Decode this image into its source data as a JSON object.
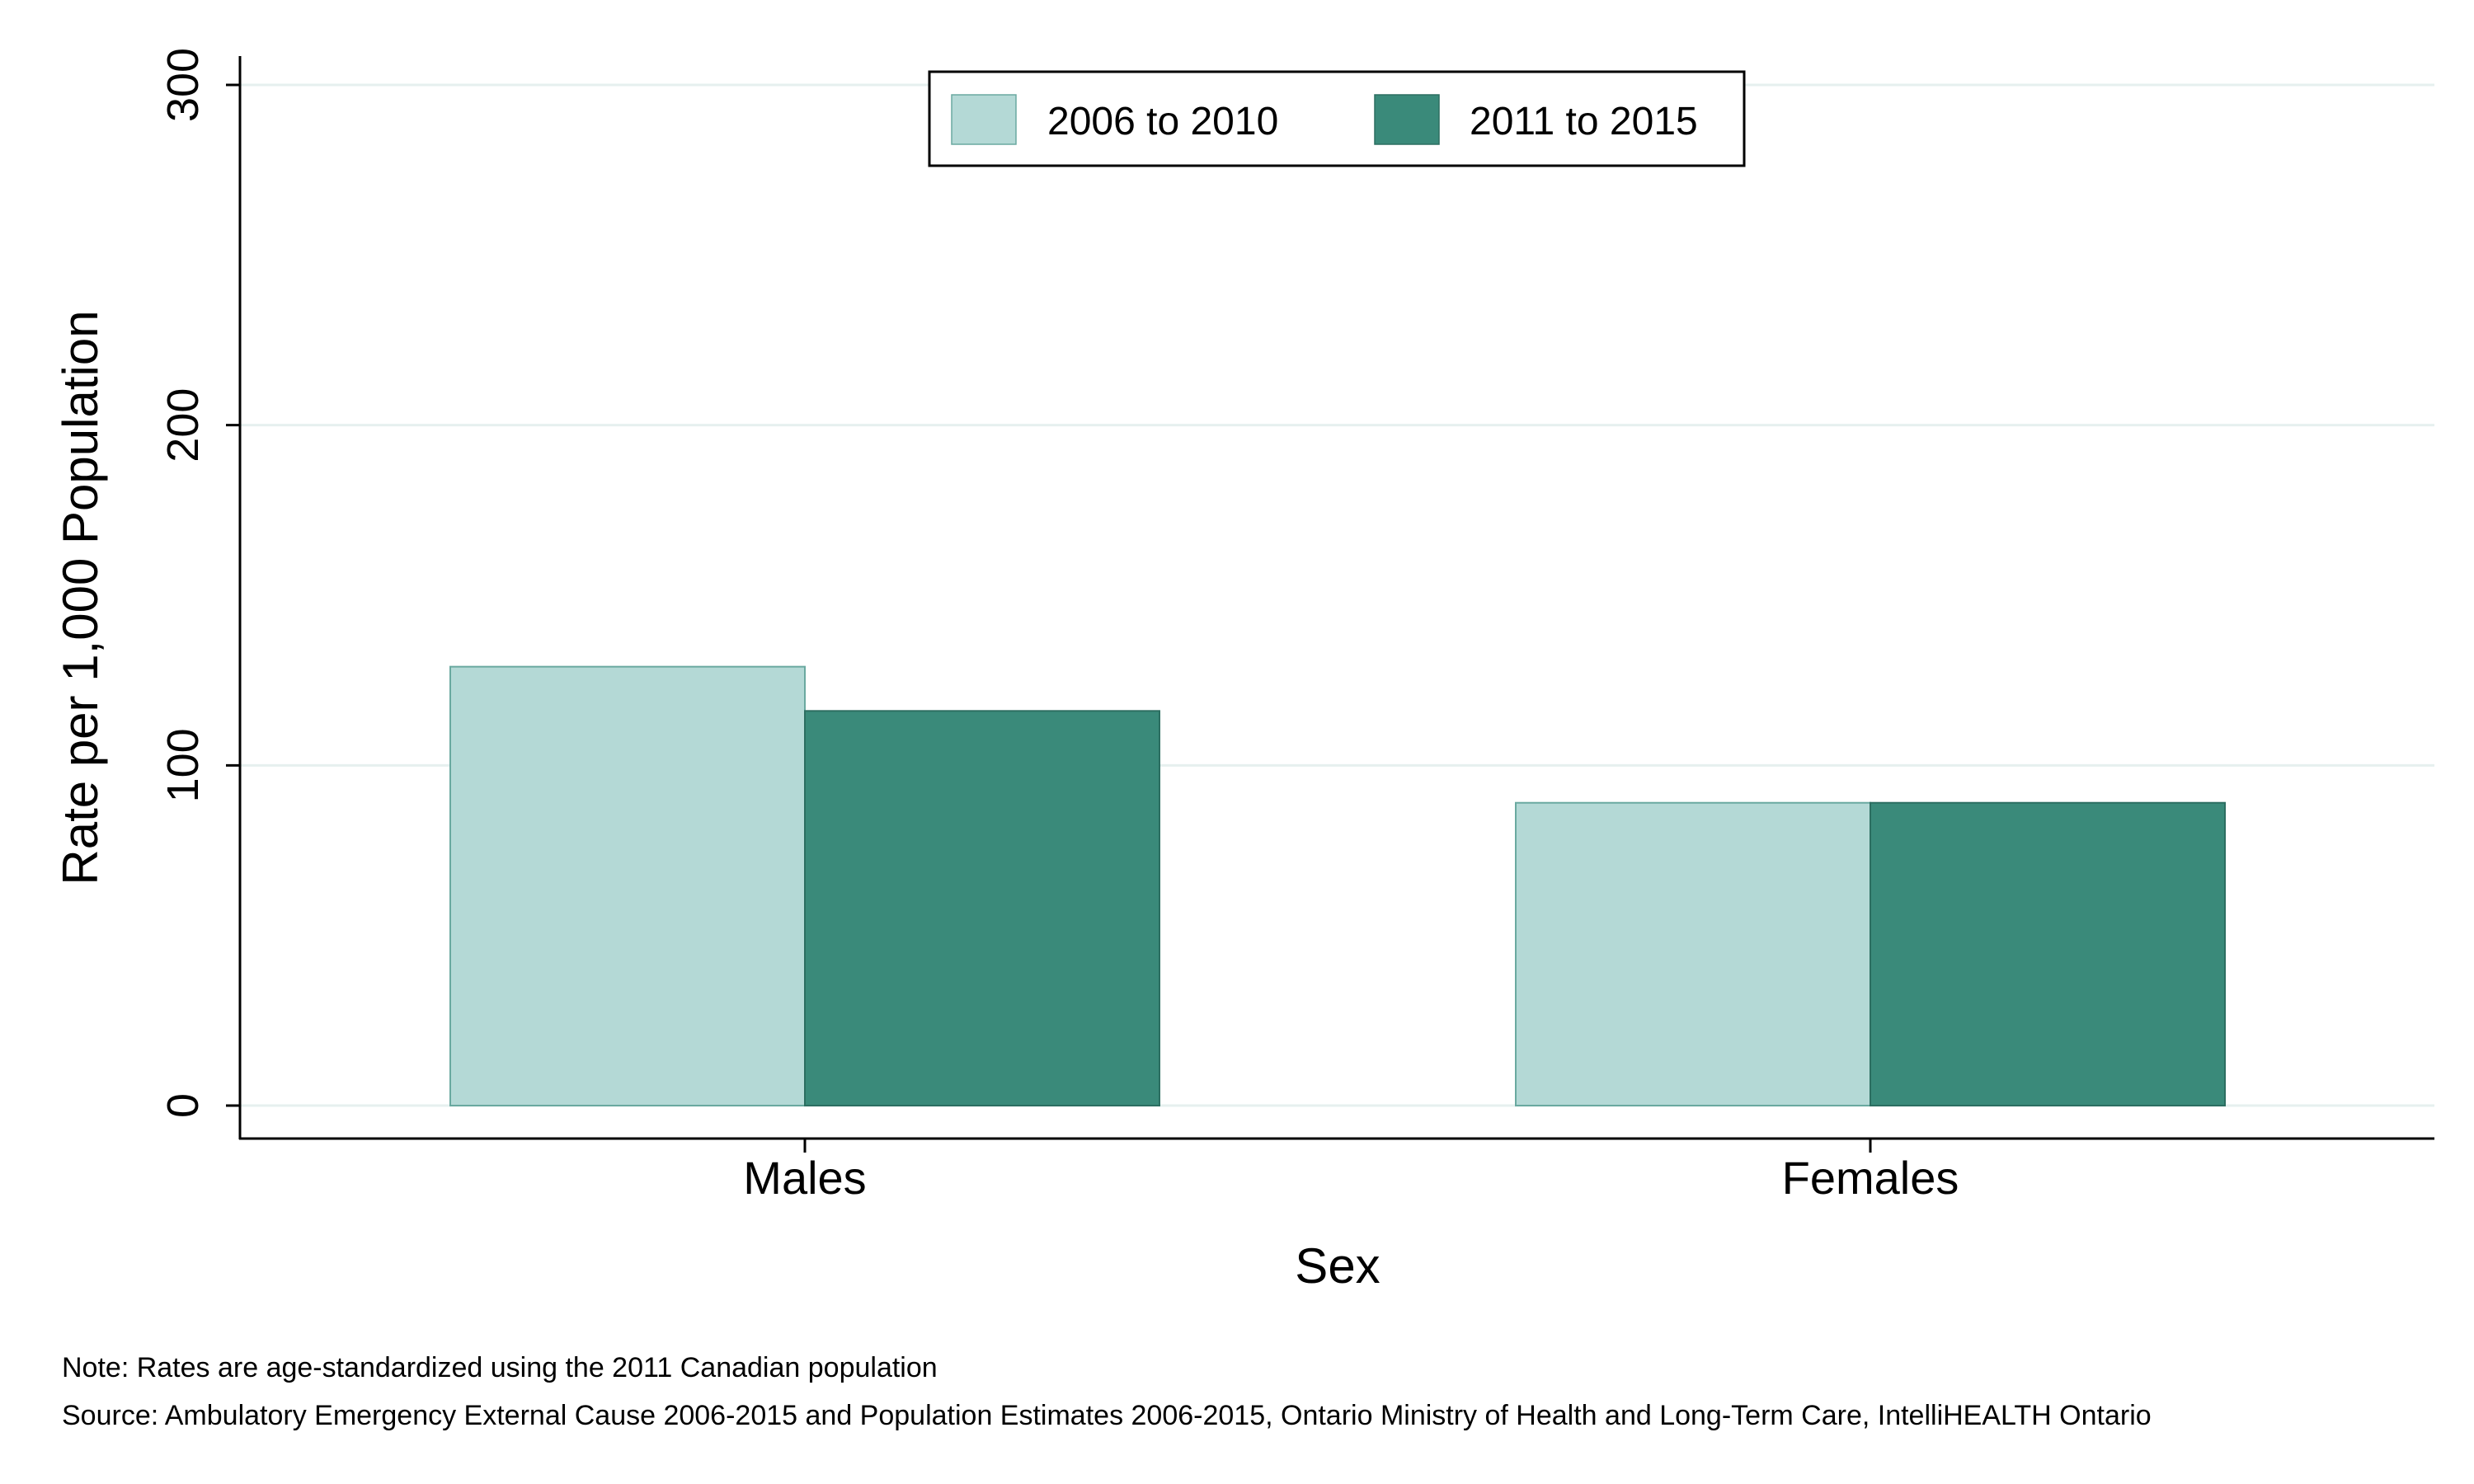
{
  "chart_data": {
    "type": "bar",
    "categories": [
      "Males",
      "Females"
    ],
    "series": [
      {
        "name": "2006 to 2010",
        "values": [
          129,
          89
        ],
        "color": "#b4d9d6"
      },
      {
        "name": "2011 to 2015",
        "values": [
          116,
          89
        ],
        "color": "#3a8a7a"
      }
    ],
    "xlabel": "Sex",
    "ylabel": "Rate per 1,000 Population",
    "ylim": [
      0,
      300
    ],
    "yticks": [
      0,
      100,
      200,
      300
    ],
    "grid": true,
    "legend_position": "top-center"
  },
  "notes": {
    "note": "Note: Rates are age-standardized using the 2011 Canadian population",
    "source": "Source: Ambulatory Emergency External Cause 2006-2015 and Population Estimates 2006-2015, Ontario Ministry of Health and Long-Term Care, IntelliHEALTH Ontario"
  }
}
